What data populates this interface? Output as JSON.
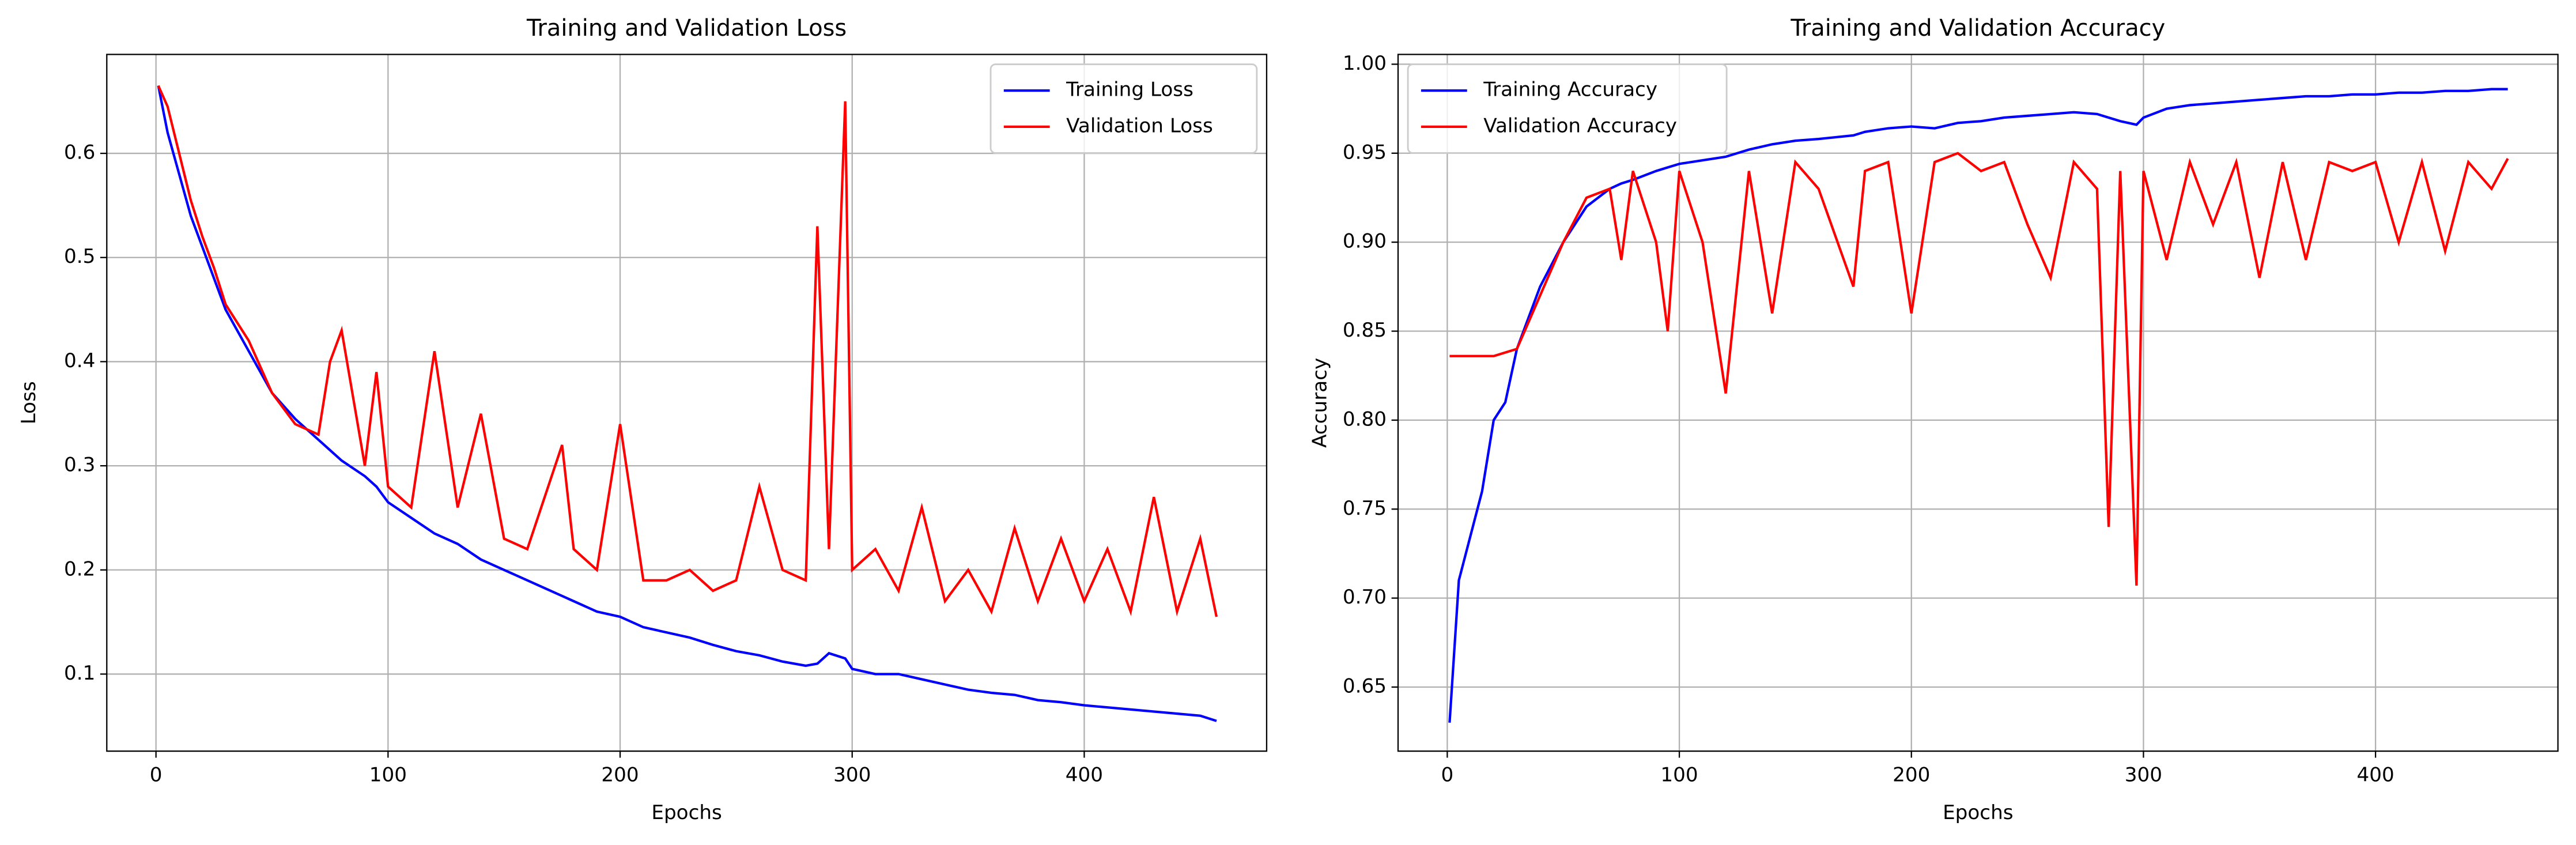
{
  "chart_data": [
    {
      "type": "line",
      "title": "Training and Validation Loss",
      "xlabel": "Epochs",
      "ylabel": "Loss",
      "x": [
        1,
        5,
        10,
        15,
        20,
        25,
        30,
        40,
        50,
        60,
        70,
        75,
        80,
        90,
        95,
        100,
        110,
        120,
        130,
        140,
        150,
        160,
        175,
        180,
        190,
        200,
        210,
        220,
        230,
        240,
        250,
        260,
        270,
        280,
        285,
        290,
        297,
        300,
        310,
        320,
        330,
        340,
        350,
        360,
        370,
        380,
        390,
        400,
        410,
        420,
        430,
        440,
        450,
        457
      ],
      "series": [
        {
          "name": "Training Loss",
          "color": "#0000ff",
          "values": [
            0.665,
            0.62,
            0.58,
            0.54,
            0.51,
            0.48,
            0.45,
            0.41,
            0.37,
            0.345,
            0.325,
            0.315,
            0.305,
            0.29,
            0.28,
            0.265,
            0.25,
            0.235,
            0.225,
            0.21,
            0.2,
            0.19,
            0.175,
            0.17,
            0.16,
            0.155,
            0.145,
            0.14,
            0.135,
            0.128,
            0.122,
            0.118,
            0.112,
            0.108,
            0.11,
            0.12,
            0.115,
            0.105,
            0.1,
            0.1,
            0.095,
            0.09,
            0.085,
            0.082,
            0.08,
            0.075,
            0.073,
            0.07,
            0.068,
            0.066,
            0.064,
            0.062,
            0.06,
            0.055
          ]
        },
        {
          "name": "Validation Loss",
          "color": "#ff0000",
          "values": [
            0.665,
            0.645,
            0.6,
            0.555,
            0.52,
            0.49,
            0.455,
            0.42,
            0.37,
            0.34,
            0.33,
            0.4,
            0.43,
            0.3,
            0.39,
            0.28,
            0.26,
            0.41,
            0.26,
            0.35,
            0.23,
            0.22,
            0.32,
            0.22,
            0.2,
            0.34,
            0.19,
            0.19,
            0.2,
            0.18,
            0.19,
            0.28,
            0.2,
            0.19,
            0.53,
            0.22,
            0.65,
            0.2,
            0.22,
            0.18,
            0.26,
            0.17,
            0.2,
            0.16,
            0.24,
            0.17,
            0.23,
            0.17,
            0.22,
            0.16,
            0.27,
            0.16,
            0.23,
            0.155
          ]
        }
      ],
      "xlim": [
        -21.2,
        478.6
      ],
      "ylim": [
        0.026,
        0.695
      ],
      "xticks": [
        0,
        100,
        200,
        300,
        400
      ],
      "yticks": [
        0.1,
        0.2,
        0.3,
        0.4,
        0.5,
        0.6
      ],
      "grid": true,
      "legend": "upper-right"
    },
    {
      "type": "line",
      "title": "Training and Validation Accuracy",
      "xlabel": "Epochs",
      "ylabel": "Accuracy",
      "x": [
        1,
        5,
        10,
        15,
        20,
        25,
        30,
        40,
        50,
        60,
        70,
        75,
        80,
        90,
        95,
        100,
        110,
        120,
        130,
        140,
        150,
        160,
        175,
        180,
        190,
        200,
        210,
        220,
        230,
        240,
        250,
        260,
        270,
        280,
        285,
        290,
        297,
        300,
        310,
        320,
        330,
        340,
        350,
        360,
        370,
        380,
        390,
        400,
        410,
        420,
        430,
        440,
        450,
        457
      ],
      "series": [
        {
          "name": "Training Accuracy",
          "color": "#0000ff",
          "values": [
            0.63,
            0.71,
            0.735,
            0.76,
            0.8,
            0.81,
            0.84,
            0.875,
            0.9,
            0.92,
            0.93,
            0.933,
            0.935,
            0.94,
            0.942,
            0.944,
            0.946,
            0.948,
            0.952,
            0.955,
            0.957,
            0.958,
            0.96,
            0.962,
            0.964,
            0.965,
            0.964,
            0.967,
            0.968,
            0.97,
            0.971,
            0.972,
            0.973,
            0.972,
            0.97,
            0.968,
            0.966,
            0.97,
            0.975,
            0.977,
            0.978,
            0.979,
            0.98,
            0.981,
            0.982,
            0.982,
            0.983,
            0.983,
            0.984,
            0.984,
            0.985,
            0.985,
            0.986,
            0.986
          ]
        },
        {
          "name": "Validation Accuracy",
          "color": "#ff0000",
          "values": [
            0.836,
            0.836,
            0.836,
            0.836,
            0.836,
            0.838,
            0.84,
            0.87,
            0.9,
            0.925,
            0.93,
            0.89,
            0.94,
            0.9,
            0.85,
            0.94,
            0.9,
            0.815,
            0.94,
            0.86,
            0.945,
            0.93,
            0.875,
            0.94,
            0.945,
            0.86,
            0.945,
            0.95,
            0.94,
            0.945,
            0.91,
            0.88,
            0.945,
            0.93,
            0.74,
            0.94,
            0.707,
            0.94,
            0.89,
            0.945,
            0.91,
            0.945,
            0.88,
            0.945,
            0.89,
            0.945,
            0.94,
            0.945,
            0.9,
            0.945,
            0.895,
            0.945,
            0.93,
            0.947
          ]
        }
      ],
      "xlim": [
        -21.2,
        478.6
      ],
      "ylim": [
        0.614,
        1.0055
      ],
      "xticks": [
        0,
        100,
        200,
        300,
        400
      ],
      "yticks": [
        0.65,
        {
          "value": 0.7,
          "label": "0.70"
        },
        0.75,
        {
          "value": 0.8,
          "label": "0.80"
        },
        0.85,
        {
          "value": 0.9,
          "label": "0.90"
        },
        0.95,
        {
          "value": 1,
          "label": "1.00"
        }
      ],
      "grid": true,
      "legend": "upper-left"
    }
  ]
}
